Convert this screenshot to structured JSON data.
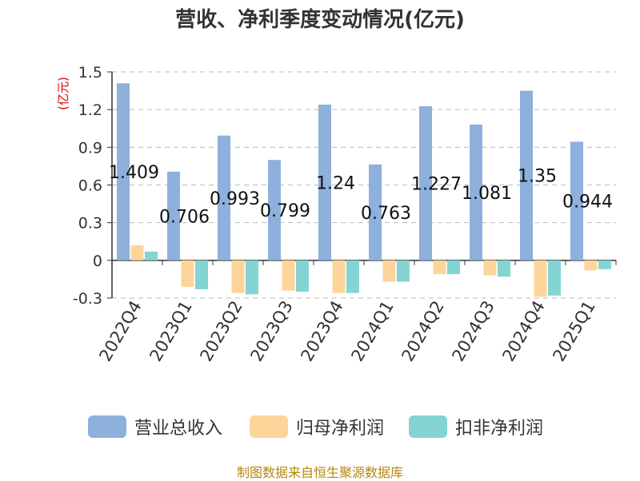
{
  "chart_data": {
    "type": "bar",
    "title": "营收、净利季度变动情况(亿元)",
    "ylabel": "(亿元)",
    "xlabel": "",
    "ylim": [
      -0.3,
      1.5
    ],
    "yticks": [
      "1.5",
      "1.2",
      "0.9",
      "0.6",
      "0.3",
      "0",
      "-0.3"
    ],
    "ytick_values": [
      1.5,
      1.2,
      0.9,
      0.6,
      0.3,
      0,
      -0.3
    ],
    "grid": true,
    "legend_position": "bottom",
    "categories": [
      "2022Q4",
      "2023Q1",
      "2023Q2",
      "2023Q3",
      "2023Q4",
      "2024Q1",
      "2024Q2",
      "2024Q3",
      "2024Q4",
      "2025Q1"
    ],
    "series": [
      {
        "name": "营业总收入",
        "color": "#8eb0dc",
        "values": [
          1.409,
          0.706,
          0.993,
          0.799,
          1.24,
          0.763,
          1.227,
          1.081,
          1.35,
          0.944
        ]
      },
      {
        "name": "归母净利润",
        "color": "#fdd59a",
        "values": [
          0.12,
          -0.21,
          -0.26,
          -0.24,
          -0.26,
          -0.17,
          -0.11,
          -0.12,
          -0.29,
          -0.08
        ]
      },
      {
        "name": "扣非净利润",
        "color": "#84d4d4",
        "values": [
          0.07,
          -0.23,
          -0.27,
          -0.25,
          -0.26,
          -0.17,
          -0.11,
          -0.13,
          -0.28,
          -0.07
        ]
      }
    ],
    "data_labels": [
      "1.409",
      "0.706",
      "0.993",
      "0.799",
      "1.24",
      "0.763",
      "1.227",
      "1.081",
      "1.35",
      "0.944"
    ]
  },
  "source_note": "制图数据来自恒生聚源数据库"
}
